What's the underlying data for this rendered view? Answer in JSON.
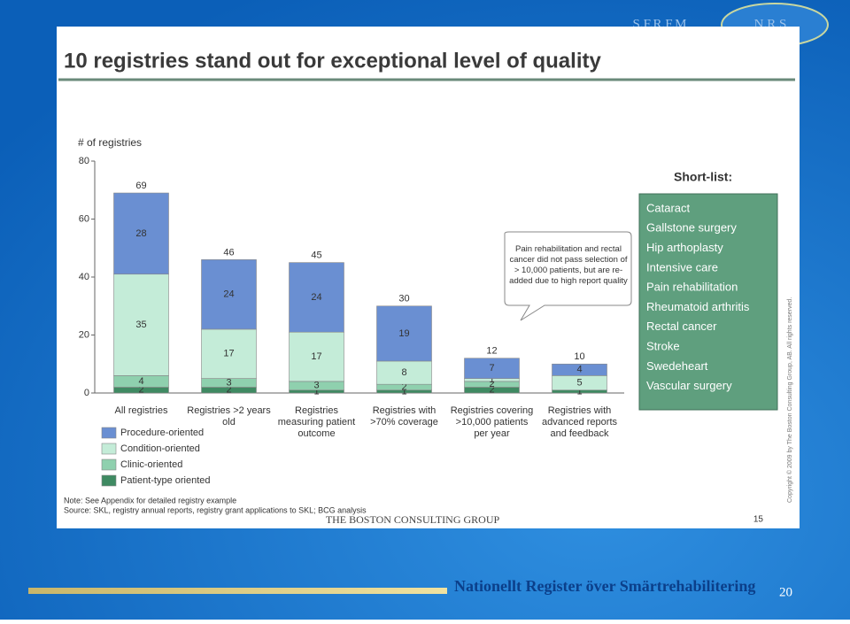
{
  "slide_header": {
    "left": "S.F.R.F.M",
    "right": "N.R.S"
  },
  "chart_data": {
    "type": "stacked_bar",
    "title": "10 registries stand out for exceptional level of quality",
    "y_label": "# of registries",
    "categories": [
      "All registries",
      "Registries >2 years old",
      "Registries measuring patient outcome",
      "Registries with >70% coverage",
      "Registries covering >10,000 patients per year",
      "Registries with advanced reports and feedback"
    ],
    "series": [
      {
        "name": "Patient-type oriented",
        "color": "#3f8a62",
        "values": [
          2,
          2,
          1,
          1,
          2,
          1
        ]
      },
      {
        "name": "Clinic-oriented",
        "color": "#8fd0ae",
        "values": [
          4,
          3,
          3,
          2,
          2,
          null
        ]
      },
      {
        "name": "Condition-oriented",
        "color": "#c4ecd8",
        "values": [
          35,
          17,
          17,
          8,
          1,
          5
        ]
      },
      {
        "name": "Procedure-oriented",
        "color": "#6a8fd2",
        "values": [
          28,
          24,
          24,
          19,
          7,
          4
        ]
      }
    ],
    "totals": [
      69,
      46,
      45,
      30,
      12,
      10
    ],
    "ylim": [
      0,
      80
    ],
    "yticks": [
      0,
      20,
      40,
      60,
      80
    ],
    "annotation": "Pain rehabilitation and rectal cancer did not pass selection of > 10,000 patients, but are re-added due to high report quality",
    "legend": "bottom-left"
  },
  "short_list": {
    "title": "Short-list:",
    "items": [
      "Cataract",
      "Gallstone surgery",
      "Hip arthoplasty",
      "Intensive care",
      "Pain rehabilitation",
      "Rheumatoid arthritis",
      "Rectal cancer",
      "Stroke",
      "Swedeheart",
      "Vascular surgery"
    ]
  },
  "notes": {
    "note": "Note: See Appendix for detailed registry example",
    "source": "Source: SKL, registry annual reports, registry grant applications to SKL; BCG analysis",
    "logo": "THE BOSTON CONSULTING GROUP",
    "page": "15",
    "copyright": "Copyright © 2009 by The Boston Consulting Group, AB. All rights reserved."
  },
  "footer": {
    "title": "Nationellt Register över Smärtrehabilitering",
    "slide_number": "20"
  }
}
